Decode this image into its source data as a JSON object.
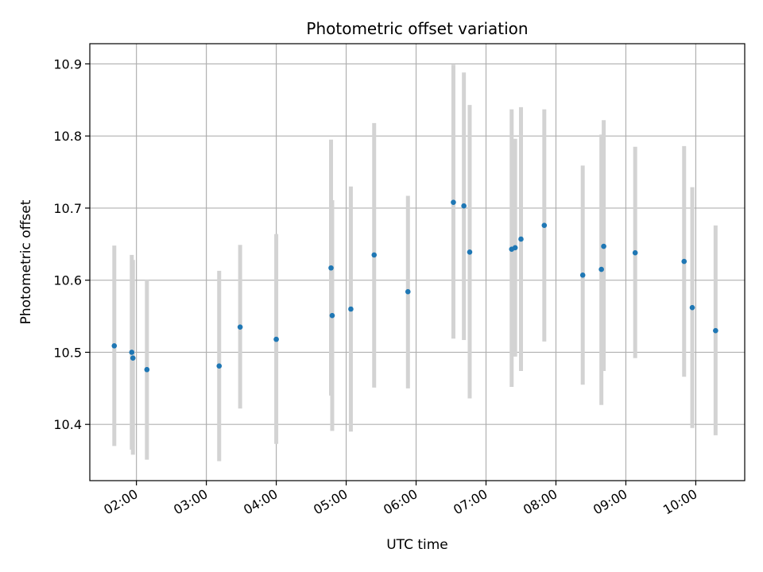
{
  "chart_data": {
    "type": "scatter",
    "title": "Photometric offset variation",
    "xlabel": "UTC time",
    "ylabel": "Photometric offset",
    "x_tick_labels": [
      "02:00",
      "03:00",
      "04:00",
      "05:00",
      "06:00",
      "07:00",
      "08:00",
      "09:00",
      "10:00"
    ],
    "x_ticks": [
      "02:00",
      "03:00",
      "04:00",
      "05:00",
      "06:00",
      "07:00",
      "08:00",
      "09:00",
      "10:00"
    ],
    "xlim": [
      "01:20",
      "10:42"
    ],
    "ylim": [
      10.322,
      10.928
    ],
    "y_ticks": [
      10.4,
      10.5,
      10.6,
      10.7,
      10.8,
      10.9
    ],
    "y_tick_labels": [
      "10.4",
      "10.5",
      "10.6",
      "10.7",
      "10.8",
      "10.9"
    ],
    "grid": true,
    "marker_color": "#1f77b4",
    "errorbar_color": "#d3d3d3",
    "points": [
      {
        "time": "01:41",
        "y": 10.509,
        "low": 10.37,
        "high": 10.648
      },
      {
        "time": "01:56",
        "y": 10.5,
        "low": 10.365,
        "high": 10.635
      },
      {
        "time": "01:57",
        "y": 10.492,
        "low": 10.358,
        "high": 10.628
      },
      {
        "time": "02:09",
        "y": 10.476,
        "low": 10.351,
        "high": 10.601
      },
      {
        "time": "03:11",
        "y": 10.481,
        "low": 10.349,
        "high": 10.613
      },
      {
        "time": "03:29",
        "y": 10.535,
        "low": 10.422,
        "high": 10.649
      },
      {
        "time": "04:00",
        "y": 10.518,
        "low": 10.373,
        "high": 10.664
      },
      {
        "time": "04:47",
        "y": 10.617,
        "low": 10.44,
        "high": 10.795
      },
      {
        "time": "04:48",
        "y": 10.551,
        "low": 10.391,
        "high": 10.711
      },
      {
        "time": "05:04",
        "y": 10.56,
        "low": 10.39,
        "high": 10.73
      },
      {
        "time": "05:24",
        "y": 10.635,
        "low": 10.451,
        "high": 10.818
      },
      {
        "time": "05:53",
        "y": 10.584,
        "low": 10.45,
        "high": 10.717
      },
      {
        "time": "06:32",
        "y": 10.708,
        "low": 10.519,
        "high": 10.899
      },
      {
        "time": "06:41",
        "y": 10.703,
        "low": 10.517,
        "high": 10.888
      },
      {
        "time": "06:46",
        "y": 10.639,
        "low": 10.436,
        "high": 10.843
      },
      {
        "time": "07:22",
        "y": 10.643,
        "low": 10.452,
        "high": 10.837
      },
      {
        "time": "07:25",
        "y": 10.645,
        "low": 10.494,
        "high": 10.796
      },
      {
        "time": "07:30",
        "y": 10.657,
        "low": 10.474,
        "high": 10.84
      },
      {
        "time": "07:50",
        "y": 10.676,
        "low": 10.515,
        "high": 10.837
      },
      {
        "time": "08:23",
        "y": 10.607,
        "low": 10.455,
        "high": 10.759
      },
      {
        "time": "08:39",
        "y": 10.615,
        "low": 10.427,
        "high": 10.802
      },
      {
        "time": "08:41",
        "y": 10.647,
        "low": 10.474,
        "high": 10.822
      },
      {
        "time": "09:08",
        "y": 10.638,
        "low": 10.492,
        "high": 10.785
      },
      {
        "time": "09:50",
        "y": 10.626,
        "low": 10.466,
        "high": 10.786
      },
      {
        "time": "09:57",
        "y": 10.562,
        "low": 10.395,
        "high": 10.729
      },
      {
        "time": "10:17",
        "y": 10.53,
        "low": 10.385,
        "high": 10.676
      }
    ]
  }
}
